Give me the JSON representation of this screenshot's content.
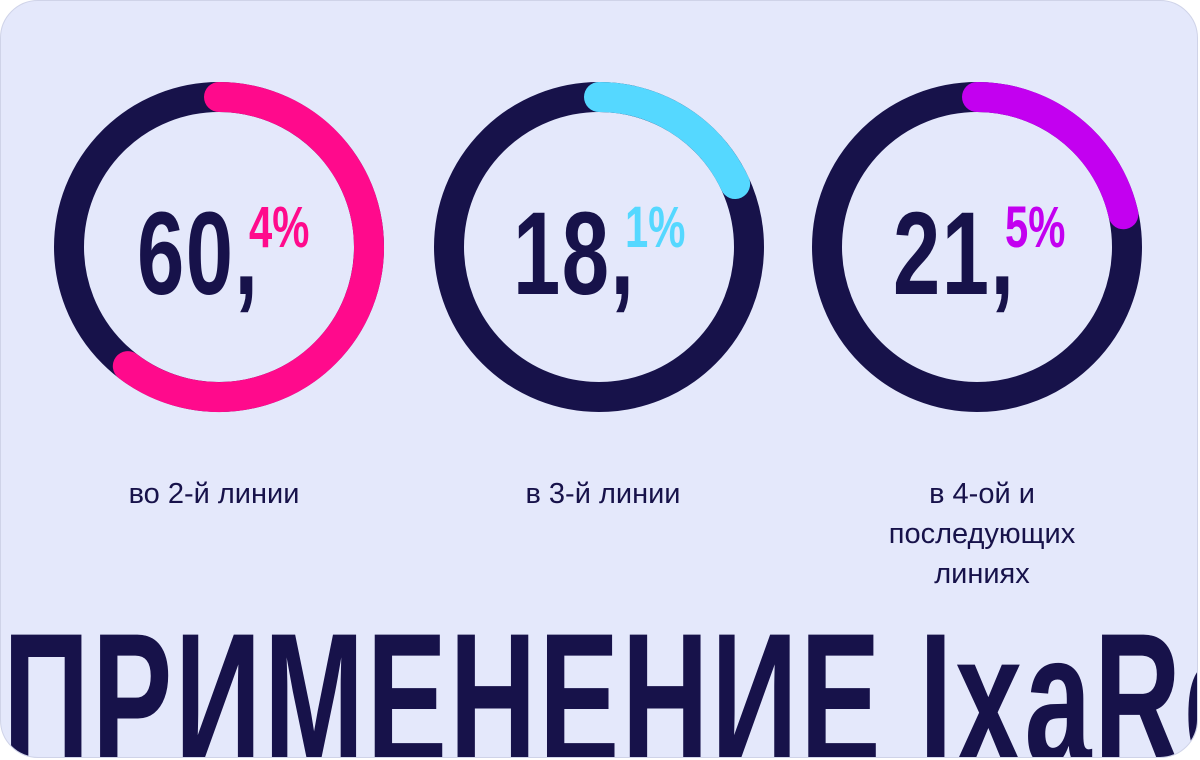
{
  "chart_data": {
    "type": "donut",
    "items": [
      {
        "integer": "60,",
        "fraction": "4%",
        "value": 60.4,
        "label_lines": [
          "во 2-й линии"
        ],
        "color": "#ff0a8c"
      },
      {
        "integer": "18,",
        "fraction": "1%",
        "value": 18.1,
        "label_lines": [
          "в 3-й линии"
        ],
        "color": "#55d8ff"
      },
      {
        "integer": "21,",
        "fraction": "5%",
        "value": 21.5,
        "label_lines": [
          "в 4-ой и",
          "последующих",
          "линиях"
        ],
        "color": "#c300f0"
      }
    ],
    "track_color": "#17124a",
    "max_value": 100
  },
  "headline": "ПРИМЕНЕНИЕ IxaRd"
}
